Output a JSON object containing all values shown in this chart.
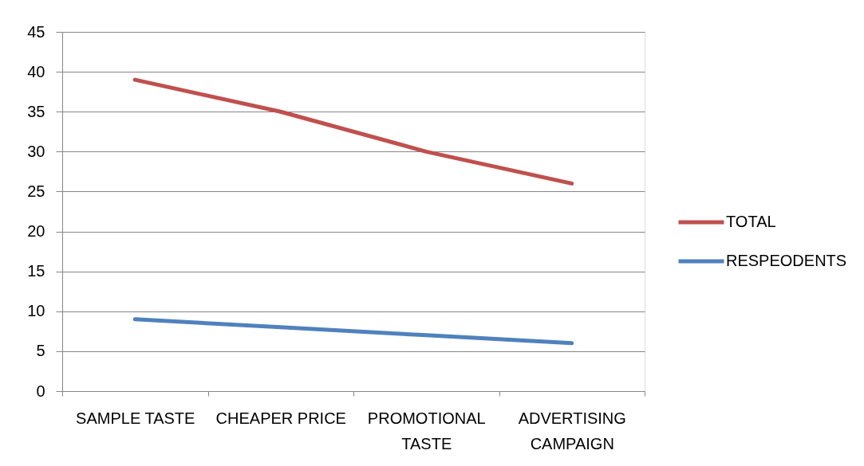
{
  "chart_data": {
    "type": "line",
    "categories": [
      "SAMPLE TASTE",
      "CHEAPER PRICE",
      "PROMOTIONAL TASTE",
      "ADVERTISING CAMPAIGN"
    ],
    "series": [
      {
        "name": "TOTAL",
        "color": "#c0504d",
        "values": [
          39,
          35,
          30,
          26
        ]
      },
      {
        "name": "RESPEODENTS",
        "color": "#4f81bd",
        "values": [
          9,
          8,
          7,
          6
        ]
      }
    ],
    "ylim": [
      0,
      45
    ],
    "yticks": [
      0,
      5,
      10,
      15,
      20,
      25,
      30,
      35,
      40,
      45
    ],
    "grid": "y",
    "legend": "right",
    "marker": "none",
    "line_style": "solid"
  }
}
